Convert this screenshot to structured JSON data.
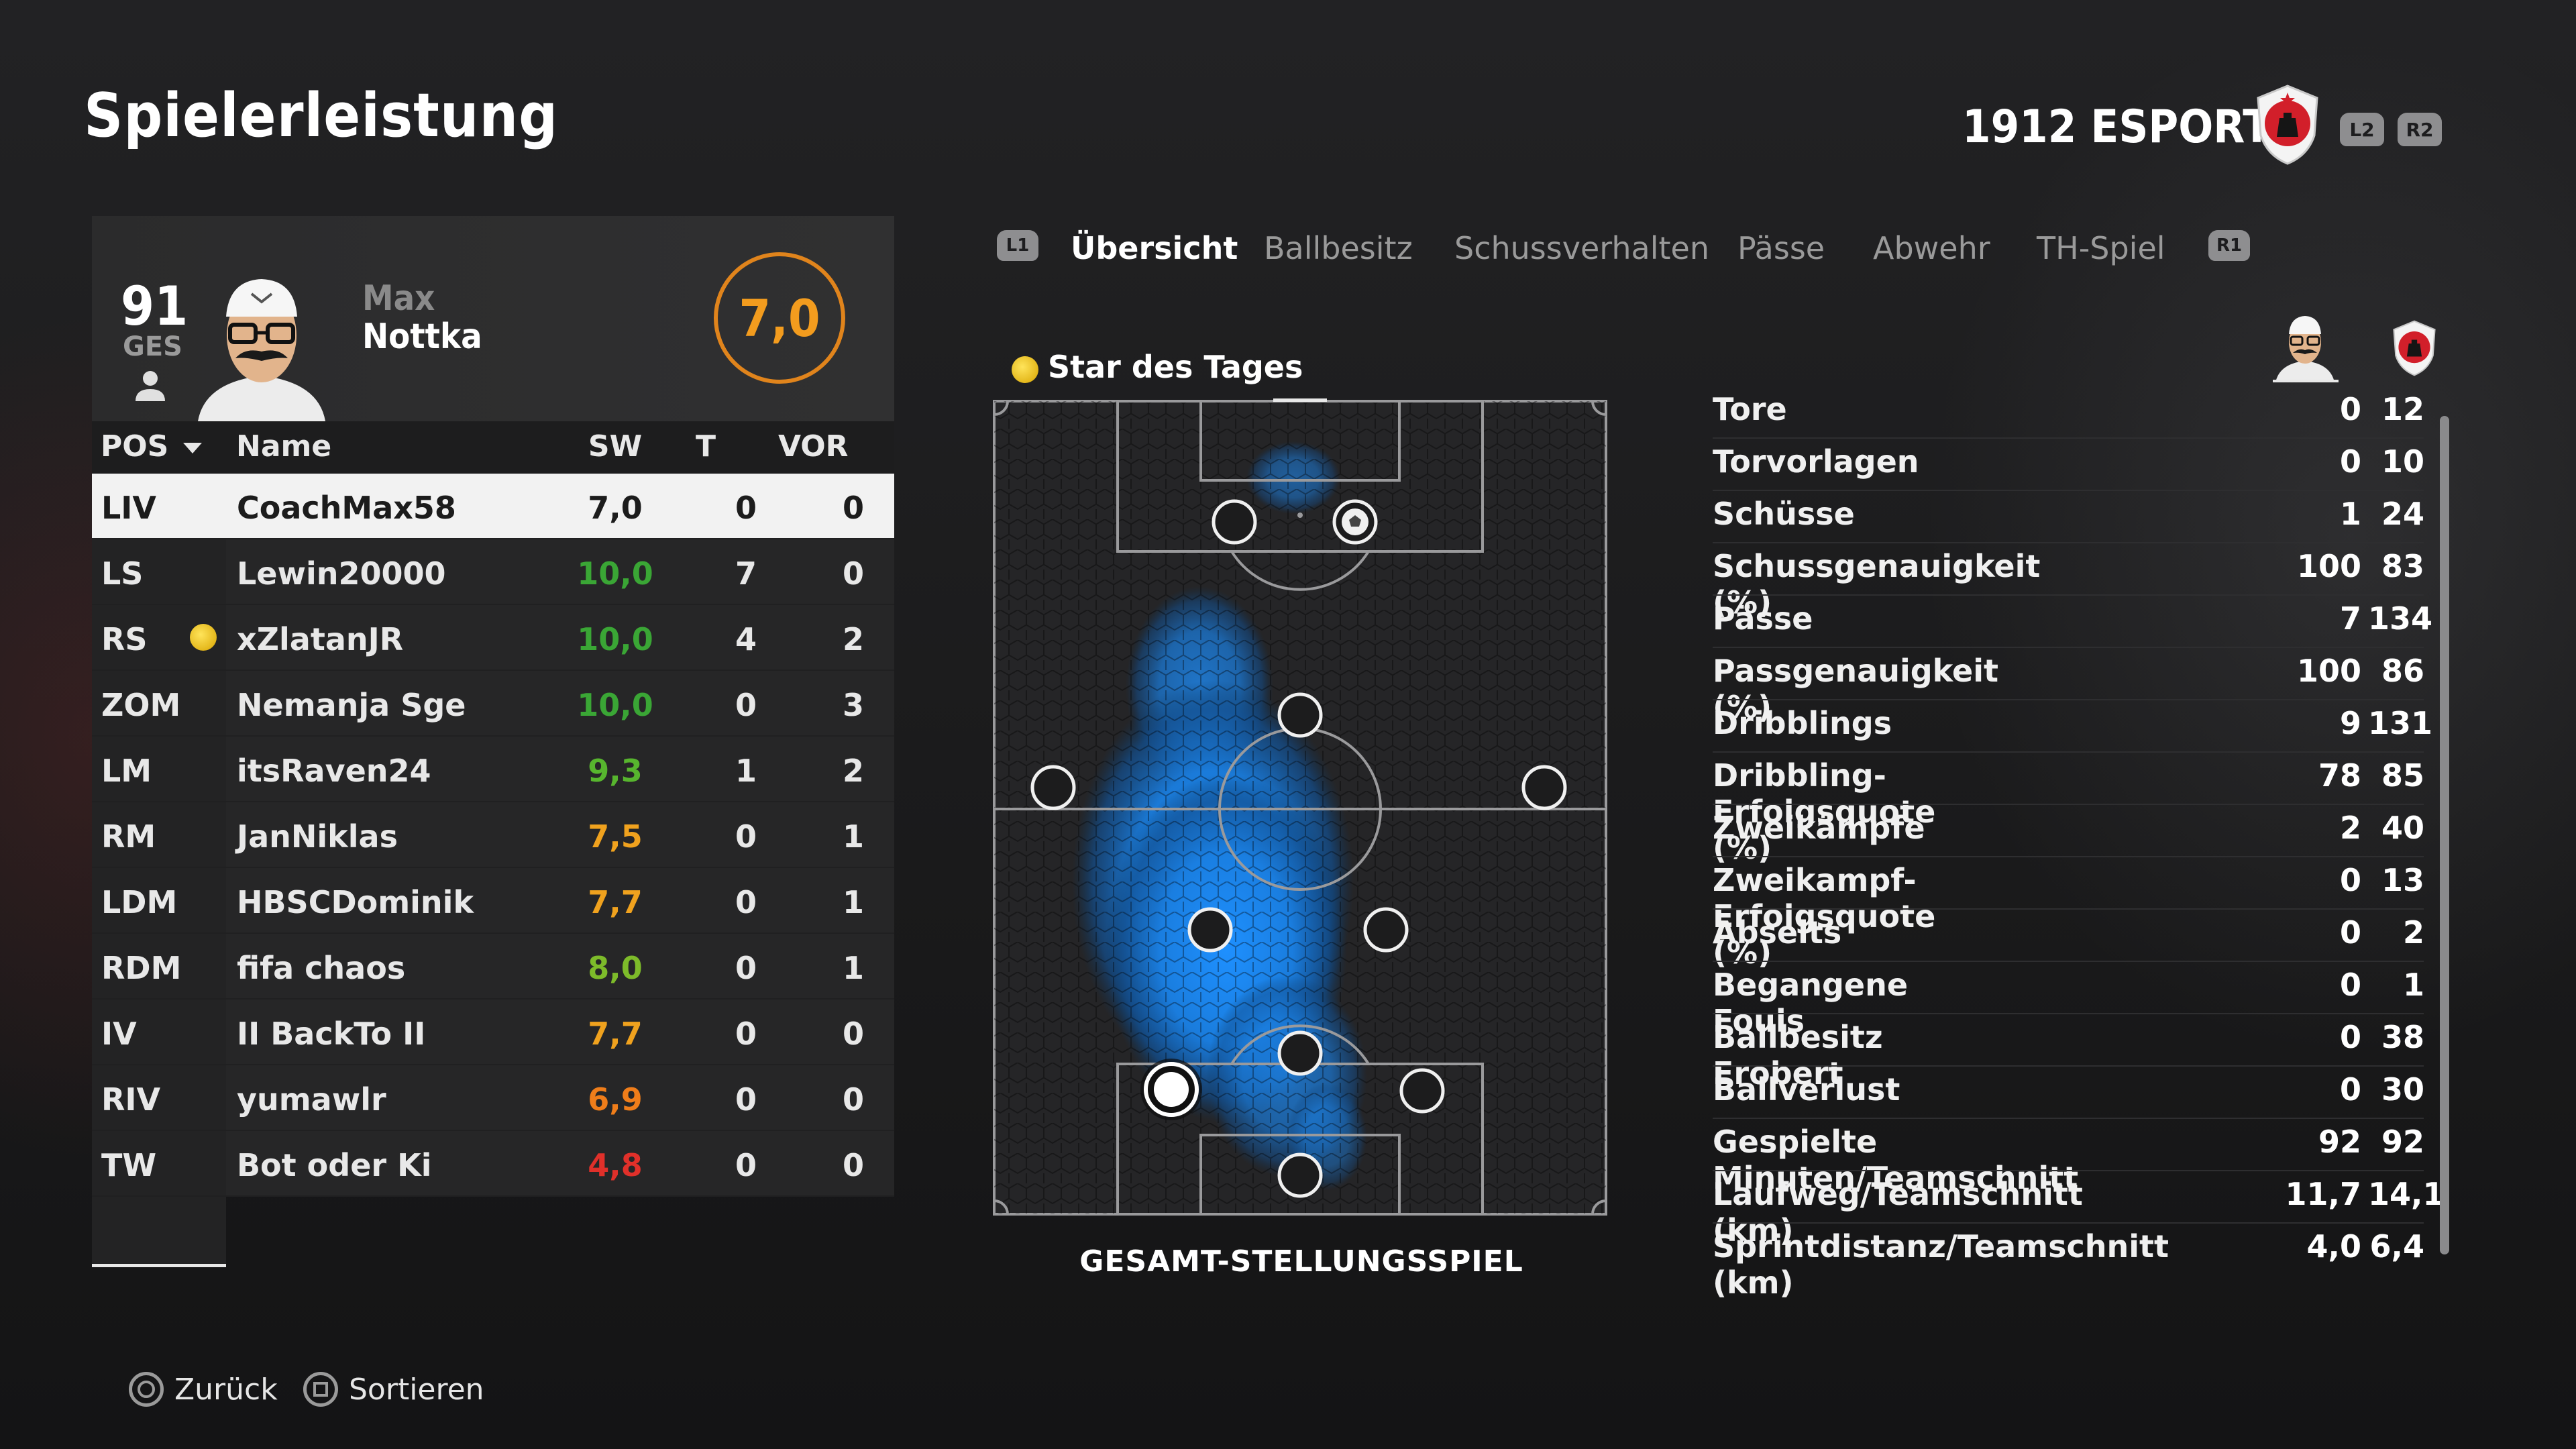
{
  "page": {
    "title": "Spielerleistung"
  },
  "team": {
    "name": "1912 ESPORTS",
    "buttons": [
      "L2",
      "R2"
    ]
  },
  "player_card": {
    "overall": "91",
    "overall_label": "GES",
    "first_name": "Max",
    "last_name": "Nottka",
    "rating": "7,0"
  },
  "table": {
    "headers": {
      "pos": "POS",
      "name": "Name",
      "sw": "SW",
      "t": "T",
      "vor": "VOR"
    },
    "rows": [
      {
        "pos": "LIV",
        "name": "CoachMax58",
        "sw": "7,0",
        "t": "0",
        "vor": "0",
        "sw_color": "#1c1c1c",
        "selected": true
      },
      {
        "pos": "LS",
        "name": "Lewin20000",
        "sw": "10,0",
        "t": "7",
        "vor": "0",
        "sw_color": "#3aa635"
      },
      {
        "pos": "RS",
        "name": "xZlatanJR",
        "sw": "10,0",
        "t": "4",
        "vor": "2",
        "sw_color": "#3aa635",
        "star": true
      },
      {
        "pos": "ZOM",
        "name": "Nemanja Sge",
        "sw": "10,0",
        "t": "0",
        "vor": "3",
        "sw_color": "#3aa635"
      },
      {
        "pos": "LM",
        "name": "itsRaven24",
        "sw": "9,3",
        "t": "1",
        "vor": "2",
        "sw_color": "#57b52e"
      },
      {
        "pos": "RM",
        "name": "JanNiklas",
        "sw": "7,5",
        "t": "0",
        "vor": "1",
        "sw_color": "#f0a21e"
      },
      {
        "pos": "LDM",
        "name": "HBSCDominik",
        "sw": "7,7",
        "t": "0",
        "vor": "1",
        "sw_color": "#f0a21e"
      },
      {
        "pos": "RDM",
        "name": "fifa chaos",
        "sw": "8,0",
        "t": "0",
        "vor": "1",
        "sw_color": "#7dbb2a"
      },
      {
        "pos": "IV",
        "name": "II BackTo II",
        "sw": "7,7",
        "t": "0",
        "vor": "0",
        "sw_color": "#f0a21e"
      },
      {
        "pos": "RIV",
        "name": "yumawlr",
        "sw": "6,9",
        "t": "0",
        "vor": "0",
        "sw_color": "#ef7d1a"
      },
      {
        "pos": "TW",
        "name": "Bot oder Ki",
        "sw": "4,8",
        "t": "0",
        "vor": "0",
        "sw_color": "#e0302a"
      }
    ]
  },
  "tabs": {
    "left_button": "L1",
    "right_button": "R1",
    "items": [
      "Übersicht",
      "Ballbesitz",
      "Schussverhalten",
      "Pässe",
      "Abwehr",
      "TH-Spiel"
    ],
    "active": "Übersicht"
  },
  "pitch": {
    "star_label": "Star des Tages",
    "title": "GESAMT-STELLUNGSSPIEL",
    "heat_color": "#1e90ff"
  },
  "stats": [
    {
      "label": "Tore",
      "player": "0",
      "team": "12"
    },
    {
      "label": "Torvorlagen",
      "player": "0",
      "team": "10"
    },
    {
      "label": "Schüsse",
      "player": "1",
      "team": "24"
    },
    {
      "label": "Schussgenauigkeit (%)",
      "player": "100",
      "team": "83"
    },
    {
      "label": "Pässe",
      "player": "7",
      "team": "134"
    },
    {
      "label": "Passgenauigkeit (%)",
      "player": "100",
      "team": "86"
    },
    {
      "label": "Dribblings",
      "player": "9",
      "team": "131"
    },
    {
      "label": "Dribbling-Erfolgsquote (%)",
      "player": "78",
      "team": "85"
    },
    {
      "label": "Zweikämpfe",
      "player": "2",
      "team": "40"
    },
    {
      "label": "Zweikampf-Erfolgsquote (%)",
      "player": "0",
      "team": "13"
    },
    {
      "label": "Abseits",
      "player": "0",
      "team": "2"
    },
    {
      "label": "Begangene Fouls",
      "player": "0",
      "team": "1"
    },
    {
      "label": "Ballbesitz Erobert",
      "player": "0",
      "team": "38"
    },
    {
      "label": "Ballverlust",
      "player": "0",
      "team": "30"
    },
    {
      "label": "Gespielte Minuten/Teamschnitt",
      "player": "92",
      "team": "92"
    },
    {
      "label": "Laufweg/Teamschnitt (km)",
      "player": "11,7",
      "team": "14,1"
    },
    {
      "label": "Sprintdistanz/Teamschnitt (km)",
      "player": "4,0",
      "team": "6,4"
    }
  ],
  "footer": {
    "back": "Zurück",
    "sort": "Sortieren"
  },
  "colors": {
    "accent": "#e0841c",
    "selected_row": "#f2f2f2",
    "heatmap": "#1e90ff"
  }
}
